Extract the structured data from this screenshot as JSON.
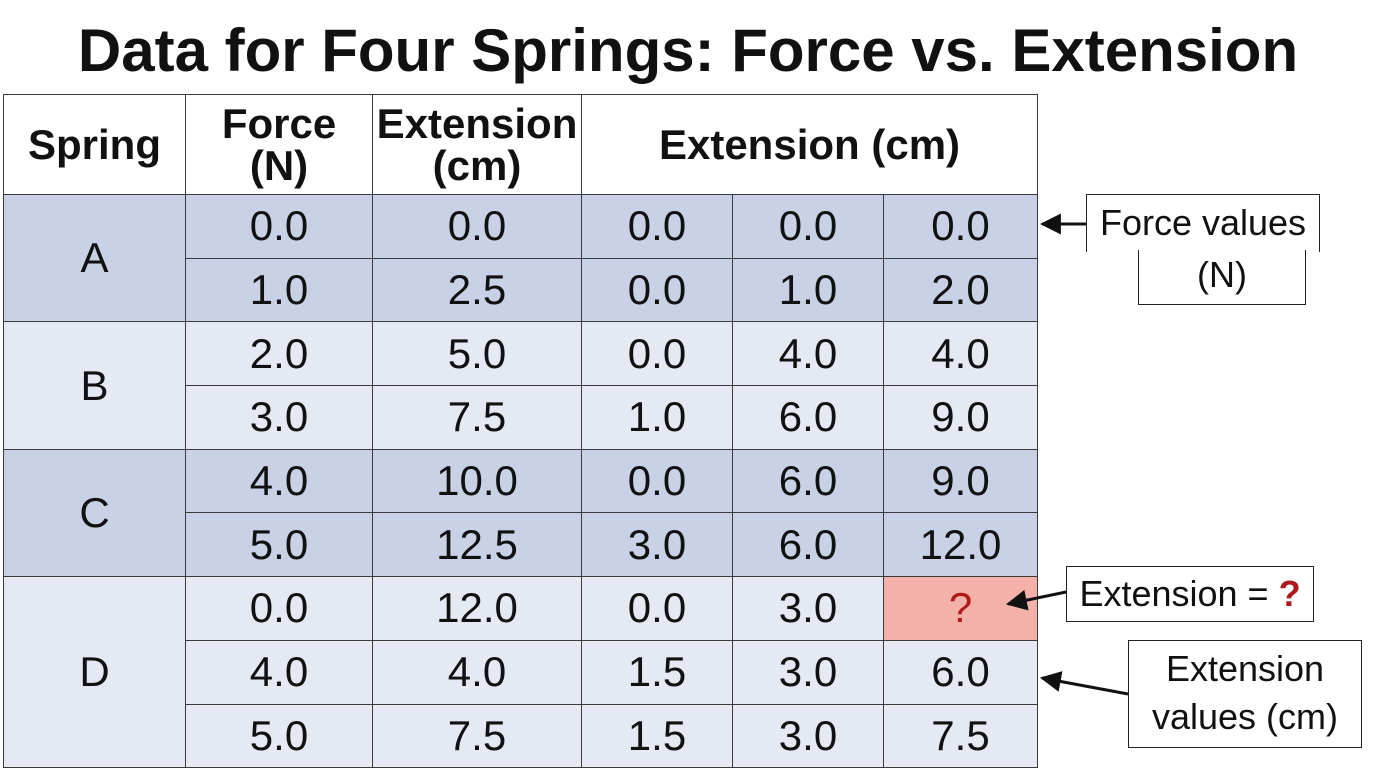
{
  "title": "Data for Four Springs: Force vs. Extension",
  "table": {
    "headers": {
      "spring": "Spring",
      "force_line1": "Force",
      "force_line2": "(N)",
      "ext_line1": "Extension",
      "ext_line2": "(cm)",
      "ext_group": "Extension (cm)"
    },
    "groups": [
      {
        "spring": "A",
        "rows": [
          [
            "0.0",
            "0.0",
            "0.0",
            "0.0",
            "0.0"
          ],
          [
            "1.0",
            "2.5",
            "0.0",
            "1.0",
            "2.0"
          ]
        ]
      },
      {
        "spring": "B",
        "rows": [
          [
            "2.0",
            "5.0",
            "0.0",
            "4.0",
            "4.0"
          ],
          [
            "3.0",
            "7.5",
            "1.0",
            "6.0",
            "9.0"
          ]
        ]
      },
      {
        "spring": "C",
        "rows": [
          [
            "4.0",
            "10.0",
            "0.0",
            "6.0",
            "9.0"
          ],
          [
            "5.0",
            "12.5",
            "3.0",
            "6.0",
            "12.0"
          ]
        ]
      },
      {
        "spring": "D",
        "rows": [
          [
            "0.0",
            "12.0",
            "0.0",
            "3.0",
            "?"
          ],
          [
            "4.0",
            "4.0",
            "1.5",
            "3.0",
            "6.0"
          ],
          [
            "5.0",
            "7.5",
            "1.5",
            "3.0",
            "7.5"
          ]
        ]
      }
    ]
  },
  "callouts": {
    "force": {
      "line1": "Force values",
      "line2": "(N)"
    },
    "unknown": {
      "text": "Extension = ",
      "mark": "?"
    },
    "extension": {
      "line1": "Extension",
      "line2": "values (cm)"
    }
  },
  "colors": {
    "band_dark": "#c8d1e5",
    "band_light": "#e5e9f4",
    "highlight": "#f4b1aa",
    "question_mark": "#b01919"
  }
}
